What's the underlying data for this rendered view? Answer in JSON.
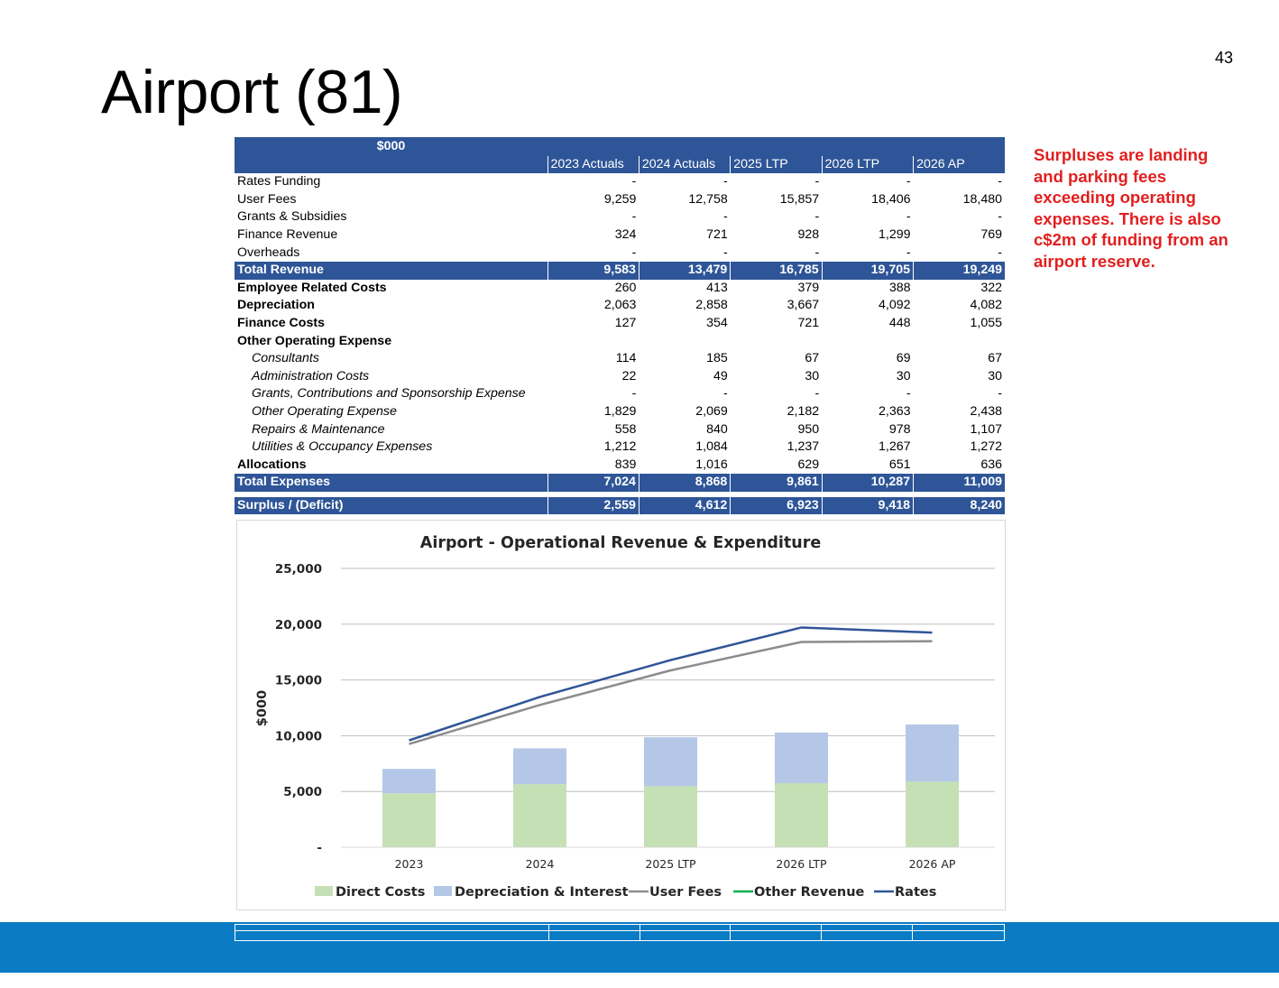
{
  "page": {
    "title": "Airport (81)",
    "page_number": "43",
    "callout": "Surpluses are landing and parking fees exceeding operating expenses. There is also c$2m of funding from an airport reserve."
  },
  "table": {
    "unit_label": "$000",
    "columns": [
      "2023 Actuals",
      "2024 Actuals",
      "2025 LTP",
      "2026 LTP",
      "2026 AP"
    ],
    "rows": [
      {
        "label": "Rates Funding",
        "values": [
          "-",
          "-",
          "-",
          "-",
          "-"
        ],
        "style": "plain"
      },
      {
        "label": "User Fees",
        "values": [
          "9,259",
          "12,758",
          "15,857",
          "18,406",
          "18,480"
        ],
        "style": "plain"
      },
      {
        "label": "Grants & Subsidies",
        "values": [
          "-",
          "-",
          "-",
          "-",
          "-"
        ],
        "style": "plain"
      },
      {
        "label": "Finance Revenue",
        "values": [
          "324",
          "721",
          "928",
          "1,299",
          "769"
        ],
        "style": "plain"
      },
      {
        "label": "Overheads",
        "values": [
          "-",
          "-",
          "-",
          "-",
          "-"
        ],
        "style": "plain"
      },
      {
        "label": "Total Revenue",
        "values": [
          "9,583",
          "13,479",
          "16,785",
          "19,705",
          "19,249"
        ],
        "style": "total"
      },
      {
        "label": "Employee Related Costs",
        "values": [
          "260",
          "413",
          "379",
          "388",
          "322"
        ],
        "style": "bold"
      },
      {
        "label": "Depreciation",
        "values": [
          "2,063",
          "2,858",
          "3,667",
          "4,092",
          "4,082"
        ],
        "style": "bold"
      },
      {
        "label": "Finance Costs",
        "values": [
          "127",
          "354",
          "721",
          "448",
          "1,055"
        ],
        "style": "bold"
      },
      {
        "label": "Other Operating  Expense",
        "values": [
          "",
          "",
          "",
          "",
          ""
        ],
        "style": "bold"
      },
      {
        "label": "Consultants",
        "values": [
          "114",
          "185",
          "67",
          "69",
          "67"
        ],
        "style": "sub"
      },
      {
        "label": "Administration Costs",
        "values": [
          "22",
          "49",
          "30",
          "30",
          "30"
        ],
        "style": "sub"
      },
      {
        "label": "Grants, Contributions and Sponsorship Expense",
        "values": [
          "-",
          "-",
          "-",
          "-",
          "-"
        ],
        "style": "sub"
      },
      {
        "label": "Other Operating Expense",
        "values": [
          "1,829",
          "2,069",
          "2,182",
          "2,363",
          "2,438"
        ],
        "style": "sub"
      },
      {
        "label": "Repairs & Maintenance",
        "values": [
          "558",
          "840",
          "950",
          "978",
          "1,107"
        ],
        "style": "sub"
      },
      {
        "label": "Utilities & Occupancy Expenses",
        "values": [
          "1,212",
          "1,084",
          "1,237",
          "1,267",
          "1,272"
        ],
        "style": "sub"
      },
      {
        "label": "Allocations",
        "values": [
          "839",
          "1,016",
          "629",
          "651",
          "636"
        ],
        "style": "bold"
      },
      {
        "label": "Total Expenses",
        "values": [
          "7,024",
          "8,868",
          "9,861",
          "10,287",
          "11,009"
        ],
        "style": "total"
      },
      {
        "label": "",
        "values": [
          "",
          "",
          "",
          "",
          ""
        ],
        "style": "gap"
      },
      {
        "label": "Surplus / (Deficit)",
        "values": [
          "2,559",
          "4,612",
          "6,923",
          "9,418",
          "8,240"
        ],
        "style": "total"
      }
    ]
  },
  "chart_data": {
    "type": "bar",
    "title": "Airport - Operational Revenue & Expenditure",
    "ylabel": "$000",
    "xlabel": "",
    "categories": [
      "2023",
      "2024",
      "2025 LTP",
      "2026 LTP",
      "2026 AP"
    ],
    "ylim": [
      0,
      25000
    ],
    "yticks": [
      0,
      5000,
      10000,
      15000,
      20000,
      25000
    ],
    "ytick_labels": [
      "-",
      "5,000",
      "10,000",
      "15,000",
      "20,000",
      "25,000"
    ],
    "grid": true,
    "legend_position": "bottom",
    "stacked_bars": [
      {
        "name": "Direct Costs",
        "color": "#c5e0b4",
        "values": [
          4834,
          5656,
          5473,
          5747,
          5872
        ]
      },
      {
        "name": "Depreciation & Interest",
        "color": "#b4c7e7",
        "values": [
          2190,
          3212,
          4388,
          4540,
          5137
        ]
      }
    ],
    "lines": [
      {
        "name": "User Fees",
        "color": "#8c8c8c",
        "values": [
          9259,
          12758,
          15857,
          18406,
          18480
        ]
      },
      {
        "name": "Other Revenue",
        "color": "#00b050",
        "values": []
      },
      {
        "name": "Rates",
        "color": "#2f5597",
        "values": [
          9583,
          13479,
          16785,
          19705,
          19249
        ]
      }
    ]
  }
}
